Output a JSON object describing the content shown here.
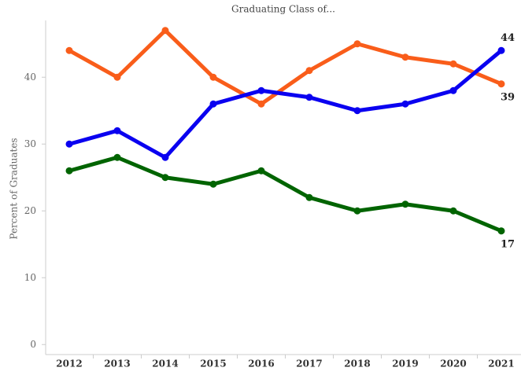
{
  "chart_data": {
    "type": "line",
    "title": "Graduating Class of...",
    "y_label": "Percent of Graduates",
    "categories": [
      "2012",
      "2013",
      "2014",
      "2015",
      "2016",
      "2017",
      "2018",
      "2019",
      "2020",
      "2021"
    ],
    "series": [
      {
        "color": "#f95d1a",
        "values": [
          44,
          40,
          47,
          40,
          36,
          41,
          45,
          43,
          42,
          39
        ]
      },
      {
        "color": "#0a00f0",
        "values": [
          30,
          32,
          28,
          36,
          38,
          37,
          35,
          36,
          38,
          44
        ]
      },
      {
        "color": "#006400",
        "values": [
          26,
          28,
          25,
          24,
          26,
          22,
          20,
          21,
          20,
          17
        ]
      }
    ],
    "ylim": [
      -1.5,
      48.5
    ],
    "yticks": [
      0,
      10,
      20,
      30,
      40
    ]
  }
}
